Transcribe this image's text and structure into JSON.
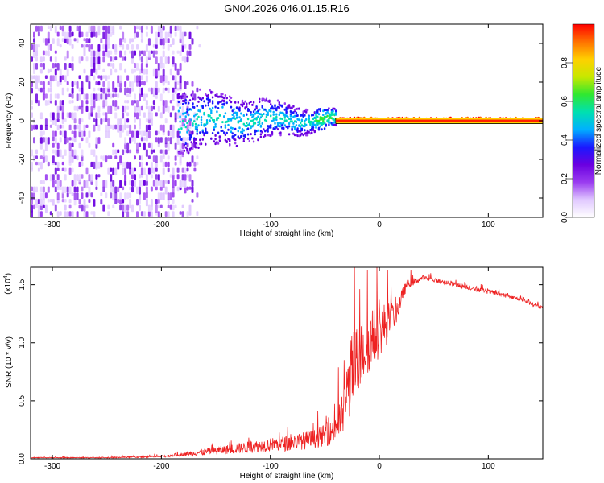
{
  "figure": {
    "title": "GN04.2026.046.01.15.R16"
  },
  "chart_data": [
    {
      "type": "heatmap",
      "xlabel": "Height of straight line (km)",
      "ylabel": "Frequency (Hz)",
      "xlim": [
        -320,
        150
      ],
      "ylim": [
        -50,
        50
      ],
      "xticks": [
        -300,
        -200,
        -100,
        0,
        100
      ],
      "xtick_labels": [
        "-300",
        "-200",
        "-100",
        "0",
        "100"
      ],
      "yticks": [
        -40,
        -20,
        0,
        20,
        40
      ],
      "ytick_labels": [
        "-40",
        "-20",
        "0",
        "20",
        "40"
      ],
      "noise_region_x": [
        -320,
        -180
      ],
      "signal_start_x": -185,
      "signal_center_freq_hz": 0,
      "colormap": [
        "#ffffff",
        "#e0c8ff",
        "#9a3cf0",
        "#6a00e0",
        "#1a18ff",
        "#00b0ff",
        "#00e0b0",
        "#30e830",
        "#c8e800",
        "#ffd000",
        "#ff7000",
        "#ff0000"
      ],
      "colorbar": {
        "label": "Normalized spectral amplitude",
        "range": [
          0.0,
          1.0
        ],
        "ticks": [
          0.0,
          0.2,
          0.4,
          0.6,
          0.8
        ],
        "tick_labels": [
          "0.0",
          "0.2",
          "0.4",
          "0.6",
          "0.8"
        ]
      }
    },
    {
      "type": "line",
      "xlabel": "Height of straight line (km)",
      "ylabel": "SNR (10 * v/v)",
      "scale_label": "(x10",
      "scale_exponent": "4",
      "xlim": [
        -320,
        150
      ],
      "ylim": [
        0,
        1.65
      ],
      "xticks": [
        -300,
        -200,
        -100,
        0,
        100
      ],
      "xtick_labels": [
        "-300",
        "-200",
        "-100",
        "0",
        "100"
      ],
      "yticks": [
        0.0,
        0.5,
        1.0,
        1.5
      ],
      "ytick_labels": [
        "0.0",
        "0.5",
        "1.0",
        "1.5"
      ],
      "line_color": "#ee2222",
      "series": [
        {
          "name": "SNR",
          "x": [
            -320,
            -250,
            -200,
            -180,
            -160,
            -140,
            -120,
            -100,
            -80,
            -60,
            -45,
            -35,
            -25,
            -15,
            -5,
            5,
            15,
            25,
            40,
            55,
            70,
            90,
            110,
            130,
            150
          ],
          "values": [
            0.01,
            0.01,
            0.02,
            0.04,
            0.06,
            0.08,
            0.1,
            0.12,
            0.14,
            0.17,
            0.22,
            0.35,
            0.75,
            0.95,
            1.05,
            1.15,
            1.25,
            1.5,
            1.56,
            1.53,
            1.5,
            1.46,
            1.42,
            1.37,
            1.3
          ],
          "noise_amp": [
            0.003,
            0.004,
            0.008,
            0.015,
            0.03,
            0.04,
            0.05,
            0.06,
            0.07,
            0.08,
            0.1,
            0.2,
            0.35,
            0.3,
            0.25,
            0.2,
            0.1,
            0.04,
            0.02,
            0.02,
            0.02,
            0.02,
            0.02,
            0.015,
            0.015
          ]
        }
      ]
    }
  ]
}
